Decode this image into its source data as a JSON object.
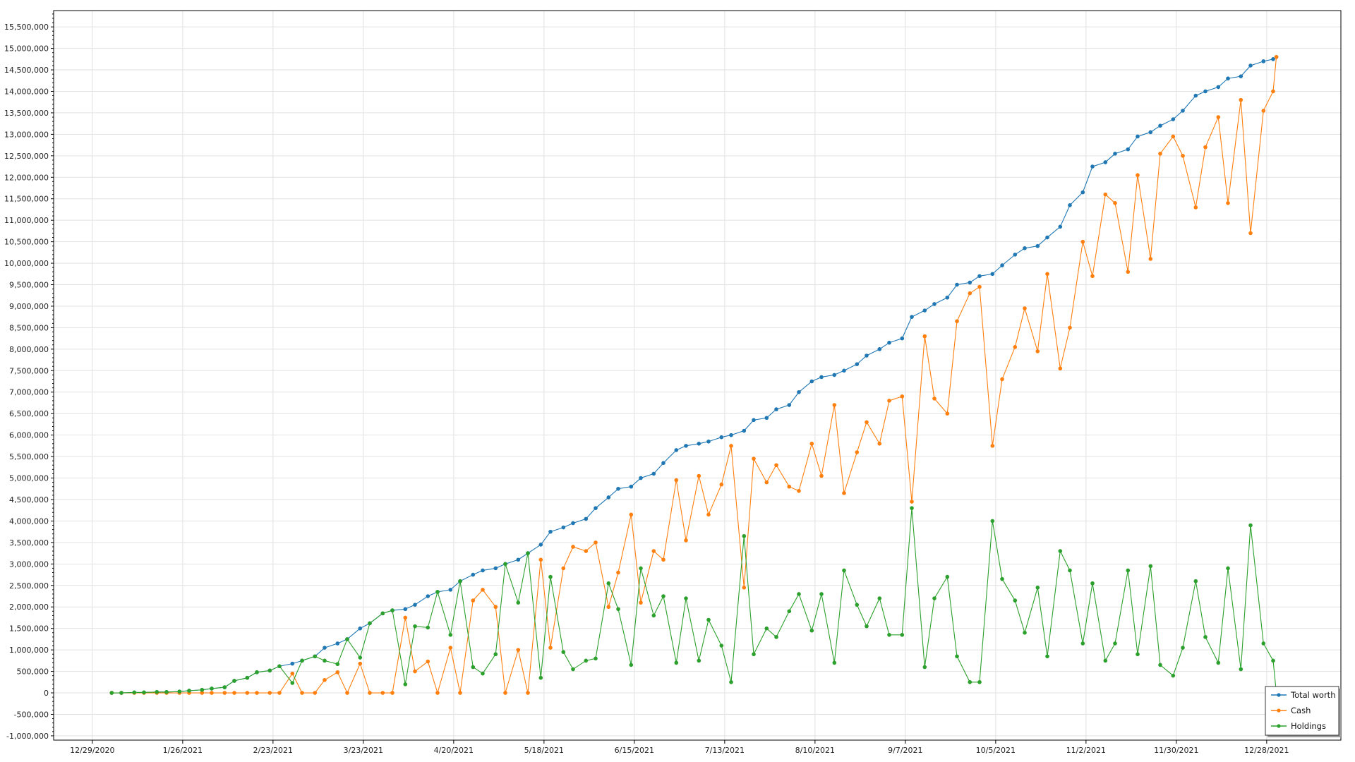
{
  "chart_data": {
    "type": "line",
    "title": "",
    "xlabel": "",
    "ylabel": "",
    "x_axis_type": "date",
    "xlim": [
      "2020-12-17",
      "2022-01-20"
    ],
    "ylim": [
      -1100000,
      15880000
    ],
    "grid": true,
    "legend_position": "bottom-right",
    "x_tick_labels": [
      "12/29/2020",
      "1/26/2021",
      "2/23/2021",
      "3/23/2021",
      "4/20/2021",
      "5/18/2021",
      "6/15/2021",
      "7/13/2021",
      "8/10/2021",
      "9/7/2021",
      "10/5/2021",
      "11/2/2021",
      "11/30/2021",
      "12/28/2021"
    ],
    "x_tick_dates": [
      "2020-12-29",
      "2021-01-26",
      "2021-02-23",
      "2021-03-23",
      "2021-04-20",
      "2021-05-18",
      "2021-06-15",
      "2021-07-13",
      "2021-08-10",
      "2021-09-07",
      "2021-10-05",
      "2021-11-02",
      "2021-11-30",
      "2021-12-28"
    ],
    "y_ticks": [
      -1000000,
      -500000,
      0,
      500000,
      1000000,
      1500000,
      2000000,
      2500000,
      3000000,
      3500000,
      4000000,
      4500000,
      5000000,
      5500000,
      6000000,
      6500000,
      7000000,
      7500000,
      8000000,
      8500000,
      9000000,
      9500000,
      10000000,
      10500000,
      11000000,
      11500000,
      12000000,
      12500000,
      13000000,
      13500000,
      14000000,
      14500000,
      15000000,
      15500000
    ],
    "y_tick_labels": [
      "-1,000,000",
      "-500,000",
      "0",
      "500,000",
      "1,000,000",
      "1,500,000",
      "2,000,000",
      "2,500,000",
      "3,000,000",
      "3,500,000",
      "4,000,000",
      "4,500,000",
      "5,000,000",
      "5,500,000",
      "6,000,000",
      "6,500,000",
      "7,000,000",
      "7,500,000",
      "8,000,000",
      "8,500,000",
      "9,000,000",
      "9,500,000",
      "10,000,000",
      "10,500,000",
      "11,000,000",
      "11,500,000",
      "12,000,000",
      "12,500,000",
      "13,000,000",
      "13,500,000",
      "14,000,000",
      "14,500,000",
      "15,000,000",
      "15,500,000"
    ],
    "x": [
      "2021-01-04",
      "2021-01-07",
      "2021-01-11",
      "2021-01-14",
      "2021-01-18",
      "2021-01-21",
      "2021-01-25",
      "2021-01-28",
      "2021-02-01",
      "2021-02-04",
      "2021-02-08",
      "2021-02-11",
      "2021-02-15",
      "2021-02-18",
      "2021-02-22",
      "2021-02-25",
      "2021-03-01",
      "2021-03-04",
      "2021-03-08",
      "2021-03-11",
      "2021-03-15",
      "2021-03-18",
      "2021-03-22",
      "2021-03-25",
      "2021-03-29",
      "2021-04-01",
      "2021-04-05",
      "2021-04-08",
      "2021-04-12",
      "2021-04-15",
      "2021-04-19",
      "2021-04-22",
      "2021-04-26",
      "2021-04-29",
      "2021-05-03",
      "2021-05-06",
      "2021-05-10",
      "2021-05-13",
      "2021-05-17",
      "2021-05-20",
      "2021-05-24",
      "2021-05-27",
      "2021-05-31",
      "2021-06-03",
      "2021-06-07",
      "2021-06-10",
      "2021-06-14",
      "2021-06-17",
      "2021-06-21",
      "2021-06-24",
      "2021-06-28",
      "2021-07-01",
      "2021-07-05",
      "2021-07-08",
      "2021-07-12",
      "2021-07-15",
      "2021-07-19",
      "2021-07-22",
      "2021-07-26",
      "2021-07-29",
      "2021-08-02",
      "2021-08-05",
      "2021-08-09",
      "2021-08-12",
      "2021-08-16",
      "2021-08-19",
      "2021-08-23",
      "2021-08-26",
      "2021-08-30",
      "2021-09-02",
      "2021-09-06",
      "2021-09-09",
      "2021-09-13",
      "2021-09-16",
      "2021-09-20",
      "2021-09-23",
      "2021-09-27",
      "2021-09-30",
      "2021-10-04",
      "2021-10-07",
      "2021-10-11",
      "2021-10-14",
      "2021-10-18",
      "2021-10-21",
      "2021-10-25",
      "2021-10-28",
      "2021-11-01",
      "2021-11-04",
      "2021-11-08",
      "2021-11-11",
      "2021-11-15",
      "2021-11-18",
      "2021-11-22",
      "2021-11-25",
      "2021-11-29",
      "2021-12-02",
      "2021-12-06",
      "2021-12-09",
      "2021-12-13",
      "2021-12-16",
      "2021-12-20",
      "2021-12-23",
      "2021-12-27",
      "2021-12-30",
      "2021-12-31"
    ],
    "series": [
      {
        "name": "Total worth",
        "color": "#1f77b4",
        "values": [
          0,
          0,
          10000,
          10000,
          20000,
          20000,
          30000,
          50000,
          70000,
          100000,
          130000,
          280000,
          350000,
          480000,
          520000,
          620000,
          680000,
          750000,
          850000,
          1050000,
          1150000,
          1250000,
          1500000,
          1620000,
          1850000,
          1920000,
          1950000,
          2050000,
          2250000,
          2350000,
          2400000,
          2600000,
          2750000,
          2850000,
          2900000,
          3000000,
          3100000,
          3250000,
          3450000,
          3750000,
          3850000,
          3950000,
          4050000,
          4300000,
          4550000,
          4750000,
          4800000,
          5000000,
          5100000,
          5350000,
          5650000,
          5750000,
          5800000,
          5850000,
          5950000,
          6000000,
          6100000,
          6350000,
          6400000,
          6600000,
          6700000,
          7000000,
          7250000,
          7350000,
          7400000,
          7500000,
          7650000,
          7850000,
          8000000,
          8150000,
          8250000,
          8750000,
          8900000,
          9050000,
          9200000,
          9500000,
          9550000,
          9700000,
          9750000,
          9950000,
          10200000,
          10350000,
          10400000,
          10600000,
          10850000,
          11350000,
          11650000,
          12250000,
          12350000,
          12550000,
          12650000,
          12950000,
          13050000,
          13200000,
          13350000,
          13550000,
          13900000,
          14000000,
          14100000,
          14300000,
          14350000,
          14600000,
          14700000,
          14750000,
          14800000
        ]
      },
      {
        "name": "Cash",
        "color": "#ff7f0e",
        "values": [
          0,
          0,
          0,
          0,
          0,
          0,
          0,
          0,
          0,
          0,
          0,
          0,
          0,
          0,
          0,
          0,
          450000,
          0,
          0,
          300000,
          480000,
          0,
          680000,
          0,
          0,
          0,
          1750000,
          500000,
          730000,
          0,
          1050000,
          0,
          2150000,
          2400000,
          2000000,
          0,
          1000000,
          0,
          3100000,
          1050000,
          2900000,
          3400000,
          3300000,
          3500000,
          2000000,
          2800000,
          4150000,
          2100000,
          3300000,
          3100000,
          4950000,
          3550000,
          5050000,
          4150000,
          4850000,
          5750000,
          2450000,
          5450000,
          4900000,
          5300000,
          4800000,
          4700000,
          5800000,
          5050000,
          6700000,
          4650000,
          5600000,
          6300000,
          5800000,
          6800000,
          6900000,
          4450000,
          8300000,
          6850000,
          6500000,
          8650000,
          9300000,
          9450000,
          5750000,
          7300000,
          8050000,
          8950000,
          7950000,
          9750000,
          7550000,
          8500000,
          10500000,
          9700000,
          11600000,
          11400000,
          9800000,
          12050000,
          10100000,
          12550000,
          12950000,
          12500000,
          11300000,
          12700000,
          13400000,
          11400000,
          13800000,
          10700000,
          13550000,
          14000000,
          14800000
        ]
      },
      {
        "name": "Holdings",
        "color": "#2ca02c",
        "values": [
          0,
          0,
          10000,
          10000,
          20000,
          20000,
          30000,
          50000,
          70000,
          100000,
          130000,
          280000,
          350000,
          480000,
          520000,
          620000,
          230000,
          750000,
          850000,
          750000,
          670000,
          1250000,
          820000,
          1620000,
          1850000,
          1920000,
          200000,
          1550000,
          1520000,
          2350000,
          1350000,
          2600000,
          600000,
          450000,
          900000,
          3000000,
          2100000,
          3250000,
          350000,
          2700000,
          950000,
          550000,
          750000,
          800000,
          2550000,
          1950000,
          650000,
          2900000,
          1800000,
          2250000,
          700000,
          2200000,
          750000,
          1700000,
          1100000,
          250000,
          3650000,
          900000,
          1500000,
          1300000,
          1900000,
          2300000,
          1450000,
          2300000,
          700000,
          2850000,
          2050000,
          1550000,
          2200000,
          1350000,
          1350000,
          4300000,
          600000,
          2200000,
          2700000,
          850000,
          250000,
          250000,
          4000000,
          2650000,
          2150000,
          1400000,
          2450000,
          850000,
          3300000,
          2850000,
          1150000,
          2550000,
          750000,
          1150000,
          2850000,
          900000,
          2950000,
          650000,
          400000,
          1050000,
          2600000,
          1300000,
          700000,
          2900000,
          550000,
          3900000,
          1150000,
          750000,
          0
        ]
      }
    ]
  }
}
